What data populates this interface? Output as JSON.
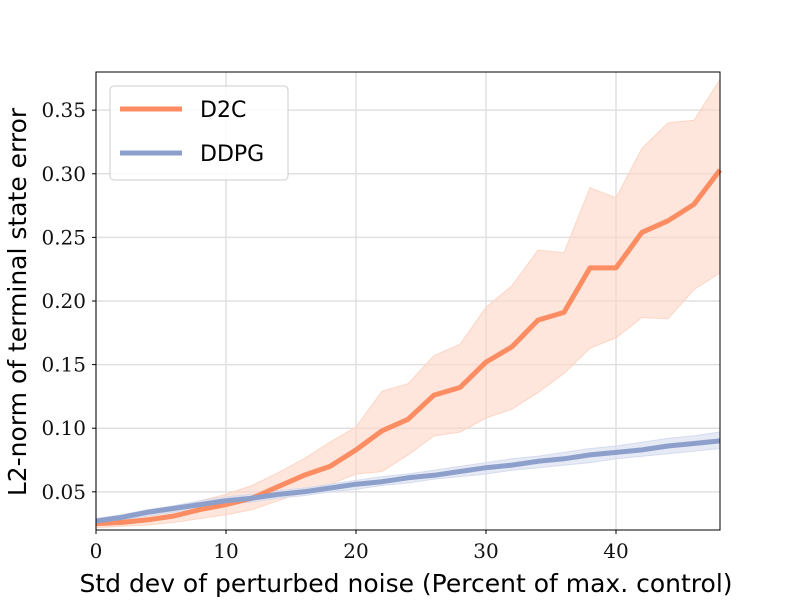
{
  "chart_data": {
    "type": "line",
    "title": "",
    "xlabel": "Std dev of perturbed noise (Percent of max. control)",
    "ylabel": "L2-norm of terminal state error",
    "xlim": [
      0,
      48
    ],
    "ylim": [
      0.02,
      0.38
    ],
    "xticks": [
      0,
      10,
      20,
      30,
      40
    ],
    "yticks": [
      0.05,
      0.1,
      0.15,
      0.2,
      0.25,
      0.3,
      0.35
    ],
    "xtick_labels": [
      "0",
      "10",
      "20",
      "30",
      "40"
    ],
    "ytick_labels": [
      "0.05",
      "0.10",
      "0.15",
      "0.20",
      "0.25",
      "0.30",
      "0.35"
    ],
    "grid": true,
    "legend_position": "top-left",
    "x": [
      0,
      2,
      4,
      6,
      8,
      10,
      12,
      14,
      16,
      18,
      20,
      22,
      24,
      26,
      28,
      30,
      32,
      34,
      36,
      38,
      40,
      42,
      44,
      46,
      48
    ],
    "series": [
      {
        "name": "D2C",
        "color": "#fc8d62",
        "band_color": "#fdd5c4",
        "values": [
          0.025,
          0.026,
          0.028,
          0.031,
          0.036,
          0.04,
          0.045,
          0.054,
          0.063,
          0.07,
          0.083,
          0.098,
          0.107,
          0.126,
          0.132,
          0.152,
          0.164,
          0.185,
          0.191,
          0.226,
          0.226,
          0.254,
          0.263,
          0.276,
          0.303
        ],
        "lower": [
          0.022,
          0.023,
          0.024,
          0.026,
          0.029,
          0.032,
          0.036,
          0.043,
          0.05,
          0.056,
          0.064,
          0.066,
          0.079,
          0.094,
          0.097,
          0.108,
          0.115,
          0.128,
          0.143,
          0.163,
          0.171,
          0.187,
          0.186,
          0.209,
          0.222
        ],
        "upper": [
          0.028,
          0.03,
          0.033,
          0.036,
          0.043,
          0.048,
          0.055,
          0.065,
          0.076,
          0.089,
          0.101,
          0.129,
          0.135,
          0.157,
          0.166,
          0.195,
          0.212,
          0.24,
          0.238,
          0.289,
          0.281,
          0.32,
          0.34,
          0.342,
          0.374
        ]
      },
      {
        "name": "DDPG",
        "color": "#8da0cb",
        "band_color": "#d5dcee",
        "values": [
          0.027,
          0.03,
          0.034,
          0.037,
          0.04,
          0.043,
          0.045,
          0.048,
          0.05,
          0.053,
          0.056,
          0.058,
          0.061,
          0.063,
          0.066,
          0.069,
          0.071,
          0.074,
          0.076,
          0.079,
          0.081,
          0.083,
          0.086,
          0.088,
          0.09
        ],
        "lower": [
          0.025,
          0.028,
          0.031,
          0.034,
          0.037,
          0.04,
          0.042,
          0.045,
          0.047,
          0.05,
          0.052,
          0.055,
          0.057,
          0.06,
          0.062,
          0.064,
          0.067,
          0.069,
          0.071,
          0.073,
          0.076,
          0.078,
          0.08,
          0.082,
          0.084
        ],
        "upper": [
          0.029,
          0.032,
          0.036,
          0.039,
          0.043,
          0.046,
          0.048,
          0.051,
          0.053,
          0.056,
          0.059,
          0.062,
          0.064,
          0.067,
          0.07,
          0.073,
          0.076,
          0.078,
          0.081,
          0.084,
          0.086,
          0.089,
          0.092,
          0.094,
          0.097
        ]
      }
    ]
  }
}
